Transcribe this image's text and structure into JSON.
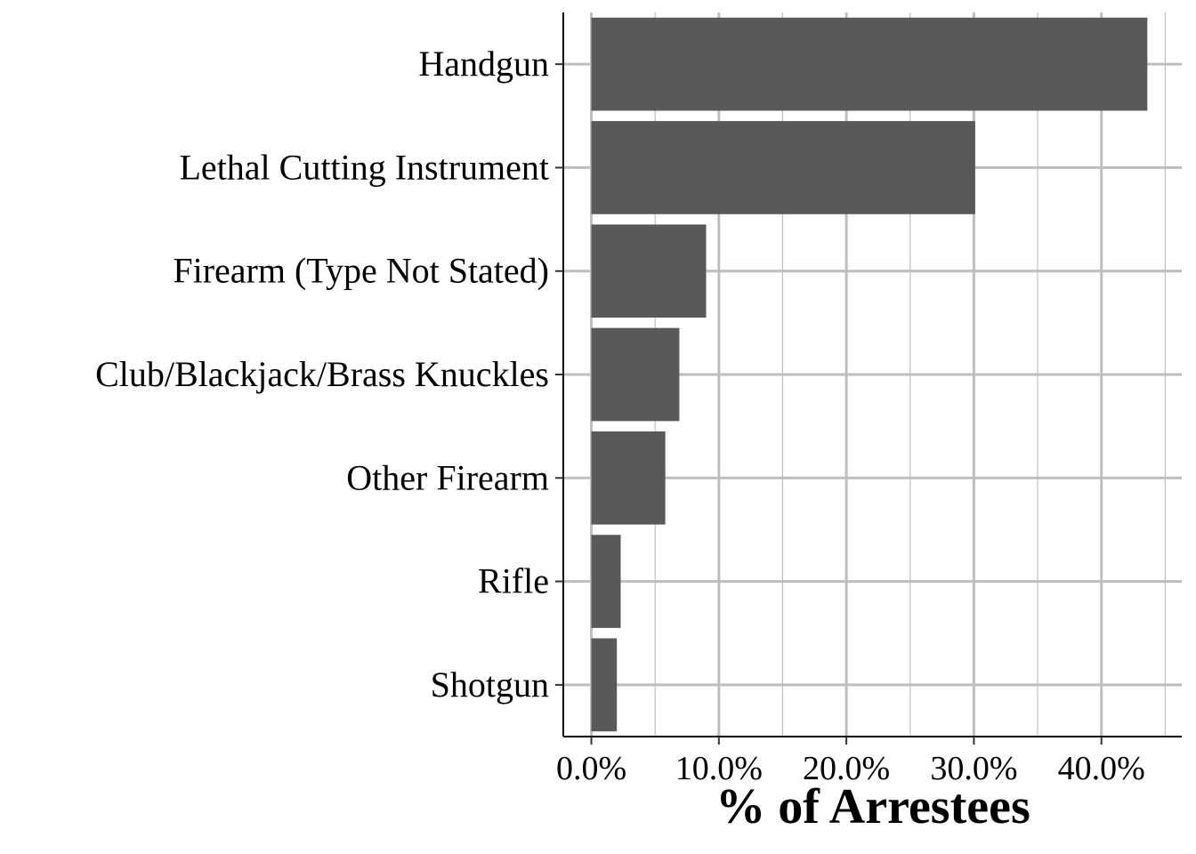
{
  "chart_data": {
    "type": "bar",
    "orientation": "horizontal",
    "categories": [
      "Handgun",
      "Lethal Cutting Instrument",
      "Firearm (Type Not Stated)",
      "Club/Blackjack/Brass Knuckles",
      "Other Firearm",
      "Rifle",
      "Shotgun"
    ],
    "values": [
      43.6,
      30.1,
      9.0,
      6.9,
      5.8,
      2.3,
      2.0
    ],
    "title": "",
    "xlabel": "% of Arrestees",
    "ylabel": "",
    "xlim": [
      -2.2,
      46.3
    ],
    "x_ticks": [
      0,
      10,
      20,
      30,
      40
    ],
    "x_tick_labels": [
      "0.0%",
      "10.0%",
      "20.0%",
      "30.0%",
      "40.0%"
    ],
    "grid": true,
    "bar_color": "#595959",
    "grid_color": "#bebebe"
  }
}
